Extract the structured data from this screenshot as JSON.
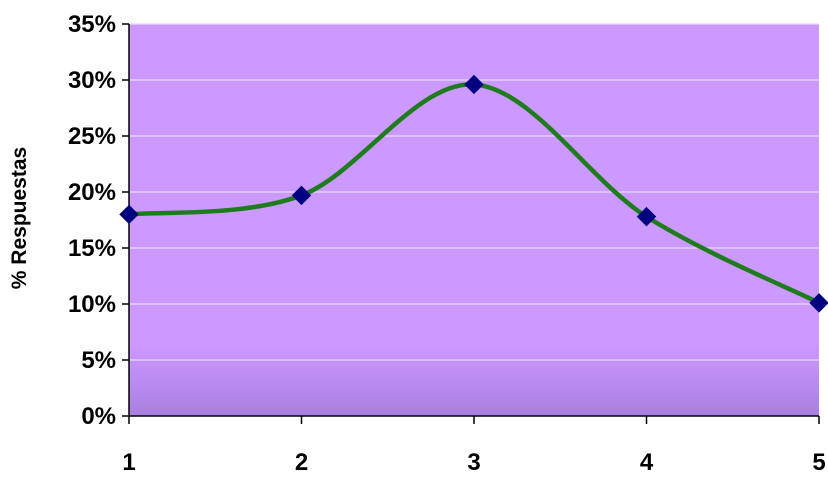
{
  "chart_data": {
    "type": "line",
    "title": "",
    "xlabel": "",
    "ylabel": "% Respuestas",
    "categories": [
      "1",
      "2",
      "3",
      "4",
      "5"
    ],
    "series": [
      {
        "values": [
          18.0,
          19.7,
          29.6,
          17.8,
          10.1
        ],
        "line_color": "#1e7b1e",
        "marker": "diamond",
        "marker_color": "#000080",
        "smooth": true
      }
    ],
    "ylim": [
      0,
      35
    ],
    "yticks": [
      0,
      5,
      10,
      15,
      20,
      25,
      30,
      35
    ],
    "ytick_labels": [
      "0%",
      "5%",
      "10%",
      "15%",
      "20%",
      "25%",
      "30%",
      "35%"
    ],
    "grid": true,
    "legend": "none",
    "plot_background": "#cc99ff",
    "plot_background_bottom": "#a97fe0",
    "gridline_color": "#e6d7ff",
    "axis_color": "#000000"
  }
}
